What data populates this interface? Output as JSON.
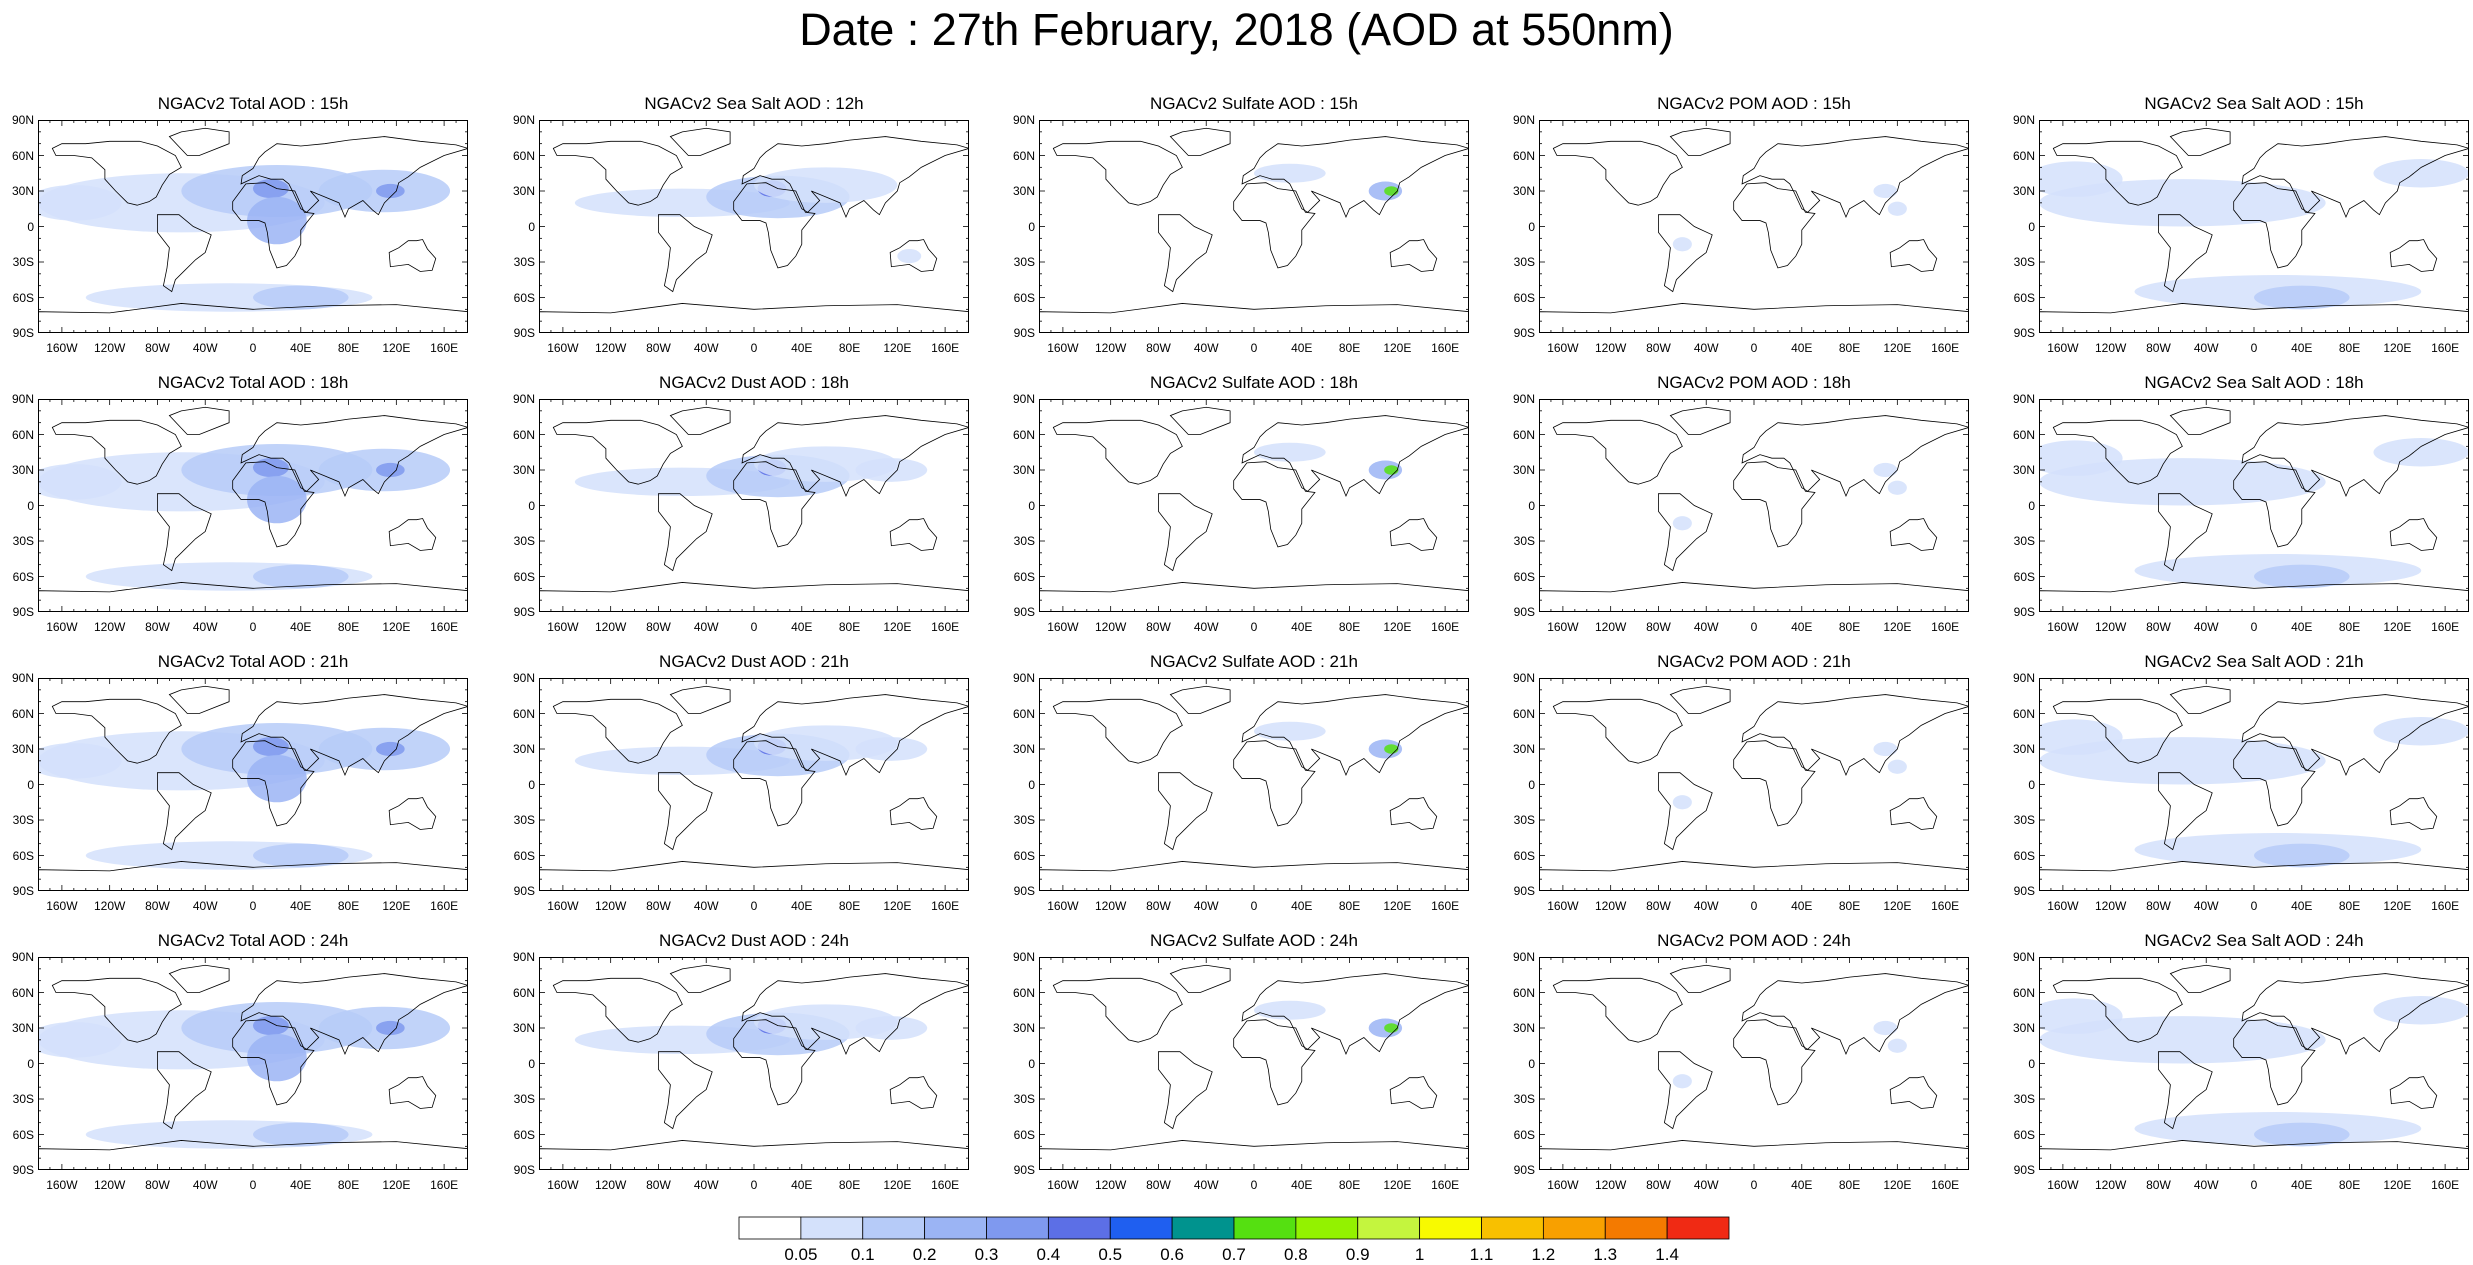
{
  "title": "Date : 27th February, 2018 (AOD at 550nm)",
  "panels": [
    [
      "NGACv2 Total AOD : 15h",
      "NGACv2 Sea Salt  AOD : 12h",
      "NGACv2 Sulfate AOD : 15h",
      "NGACv2 POM AOD : 15h",
      "NGACv2 Sea Salt  AOD : 15h"
    ],
    [
      "NGACv2 Total AOD : 18h",
      "NGACv2 Dust AOD : 18h",
      "NGACv2 Sulfate AOD : 18h",
      "NGACv2 POM AOD : 18h",
      "NGACv2 Sea Salt  AOD : 18h"
    ],
    [
      "NGACv2 Total AOD : 21h",
      "NGACv2 Dust AOD : 21h",
      "NGACv2 Sulfate AOD : 21h",
      "NGACv2 POM AOD : 21h",
      "NGACv2 Sea Salt  AOD : 21h"
    ],
    [
      "NGACv2 Total AOD : 24h",
      "NGACv2 Dust AOD : 24h",
      "NGACv2 Sulfate AOD : 24h",
      "NGACv2 POM AOD : 24h",
      "NGACv2 Sea Salt  AOD : 24h"
    ]
  ],
  "lat_labels": [
    "90N",
    "60N",
    "30N",
    "0",
    "30S",
    "60S",
    "90S"
  ],
  "lon_labels": [
    "160W",
    "120W",
    "80W",
    "40W",
    "0",
    "40E",
    "80E",
    "120E",
    "160E"
  ],
  "colorbar": {
    "labels": [
      "0.05",
      "0.1",
      "0.2",
      "0.3",
      "0.4",
      "0.5",
      "0.6",
      "0.7",
      "0.8",
      "0.9",
      "1",
      "1.1",
      "1.2",
      "1.3",
      "1.4"
    ],
    "colors": [
      "#ffffff",
      "#d4e1fb",
      "#b6cbf8",
      "#9bb4f4",
      "#7f99ef",
      "#5c6fe6",
      "#1f5ff0",
      "#00938e",
      "#55e011",
      "#93f200",
      "#c4f53e",
      "#f8fa00",
      "#f8c000",
      "#f8a000",
      "#f47a00",
      "#f02a14"
    ]
  },
  "colors": {
    "land_outline": "#000000",
    "aod_low": "#d4e1fb",
    "aod_mid": "#9bb4f4",
    "aod_high": "#5c6fe6"
  }
}
